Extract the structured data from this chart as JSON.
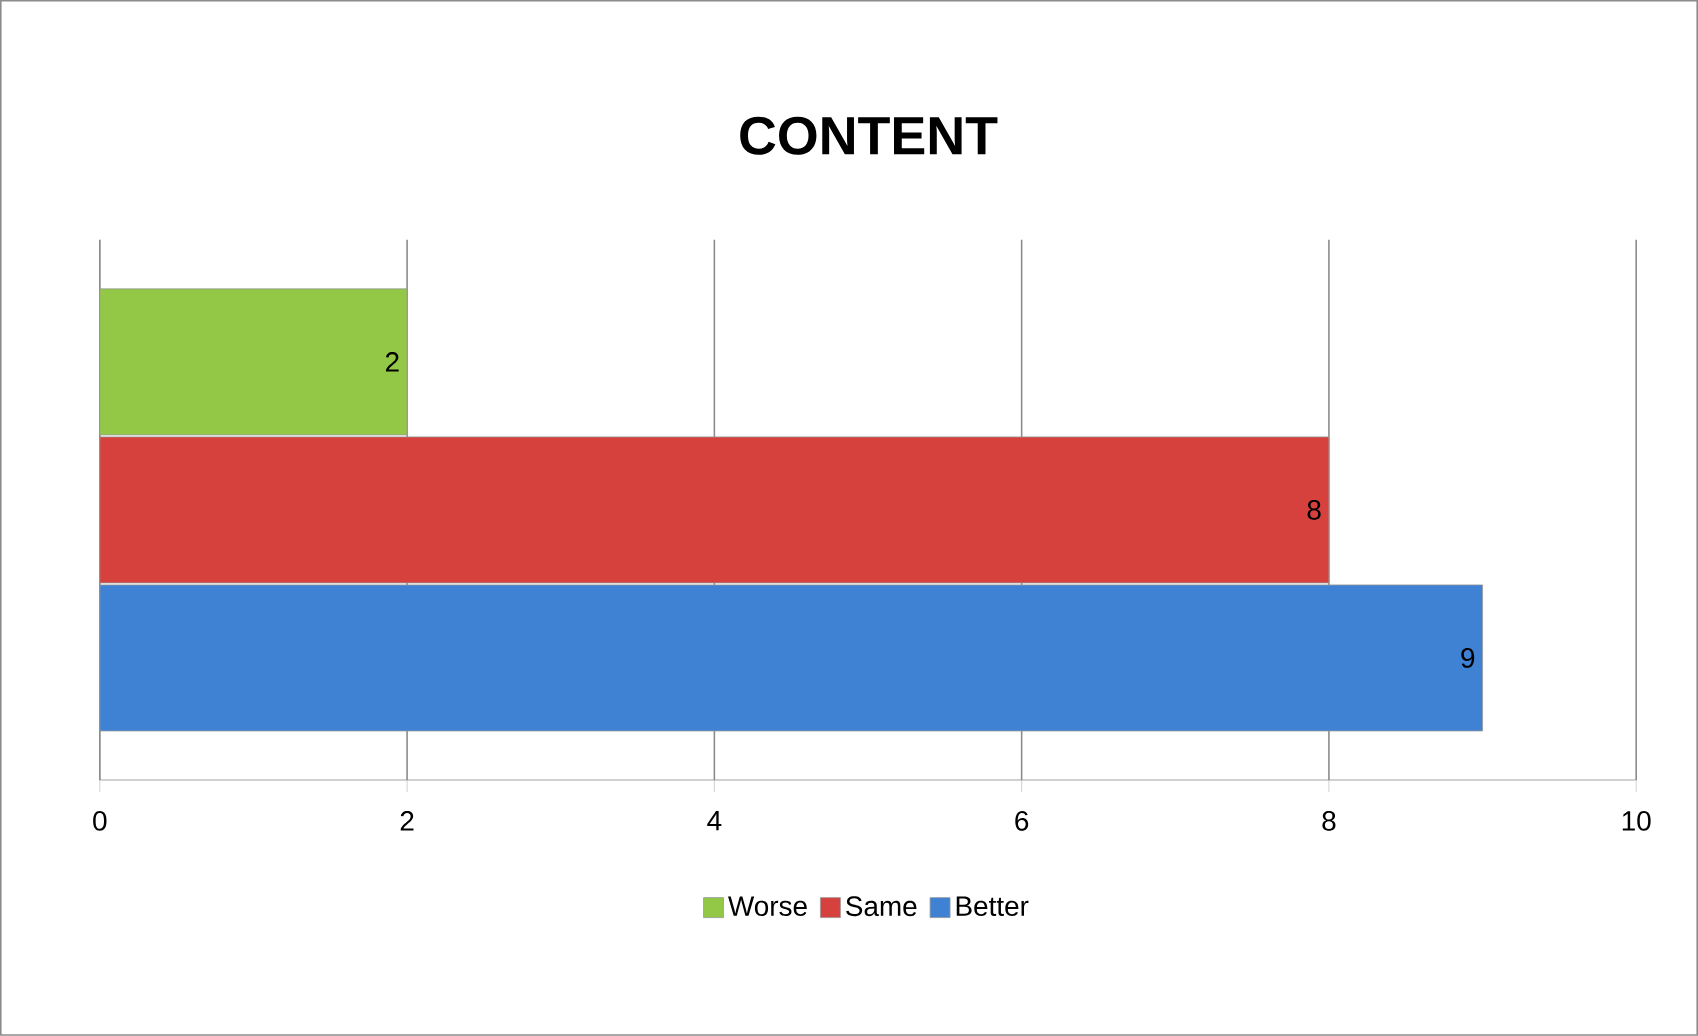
{
  "chart_data": {
    "type": "bar",
    "title": "CONTENT",
    "orientation": "horizontal",
    "categories": [
      null
    ],
    "series": [
      {
        "name": "Better",
        "color": "#3f82d4",
        "values": [
          9
        ]
      },
      {
        "name": "Same",
        "color": "#d6403d",
        "values": [
          8
        ]
      },
      {
        "name": "Worse",
        "color": "#92c846",
        "values": [
          2
        ]
      }
    ],
    "xlim": [
      0,
      10
    ],
    "xticks": [
      0,
      2,
      4,
      6,
      8,
      10
    ],
    "grid": "x",
    "legend": "bottom",
    "data_labels": true
  }
}
